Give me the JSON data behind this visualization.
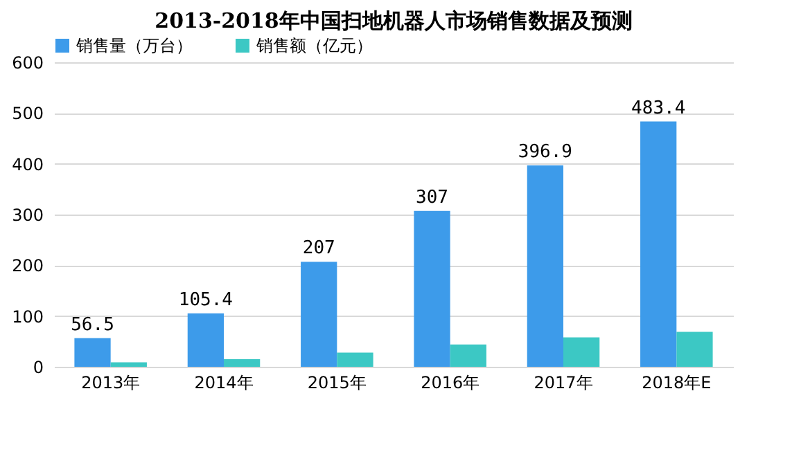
{
  "chart_data": {
    "type": "bar",
    "title": "2013-2018年中国扫地机器人市场销售数据及预测",
    "categories": [
      "2013年",
      "2014年",
      "2015年",
      "2016年",
      "2017年",
      "2018年E"
    ],
    "series": [
      {
        "name": "销售量（万台）",
        "color": "#3d9bea",
        "values": [
          56.5,
          105.4,
          207,
          307,
          396.9,
          483.4
        ],
        "value_labels": [
          "56.5",
          "105.4",
          "207",
          "307",
          "396.9",
          "483.4"
        ]
      },
      {
        "name": "销售额（亿元）",
        "color": "#3cc8c4",
        "values": [
          9,
          15,
          28,
          44,
          58,
          69
        ]
      }
    ],
    "ylim": [
      0,
      600
    ],
    "yticks": [
      0,
      100,
      200,
      300,
      400,
      500,
      600
    ],
    "grid": "y",
    "legend": "top"
  }
}
